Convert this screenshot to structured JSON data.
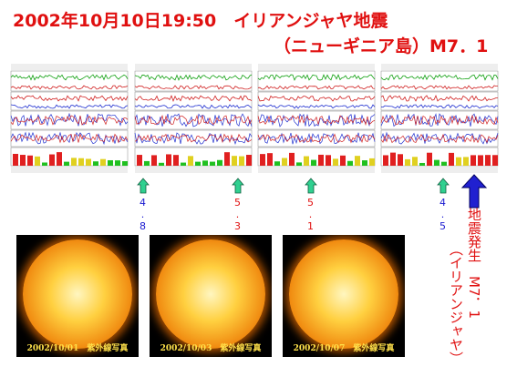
{
  "header": {
    "title_line1": "2002年10月10日19:50　イリアンジャヤ地震",
    "title_line2": "（ニューギニア島）M7．1"
  },
  "markers": [
    {
      "label": "4.8",
      "color": "#1a1ad0"
    },
    {
      "label": "5.3",
      "color": "#e01010"
    },
    {
      "label": "5.1",
      "color": "#e01010"
    },
    {
      "label": "4.5",
      "color": "#1a1ad0"
    }
  ],
  "event": {
    "label": "地震発生　M7．1",
    "place": "（イリアンジャヤ）"
  },
  "photos": [
    {
      "caption": "2002/10/01　紫外線写真"
    },
    {
      "caption": "2002/10/03　紫外線写真"
    },
    {
      "caption": "2002/10/07　紫外線写真"
    }
  ]
}
